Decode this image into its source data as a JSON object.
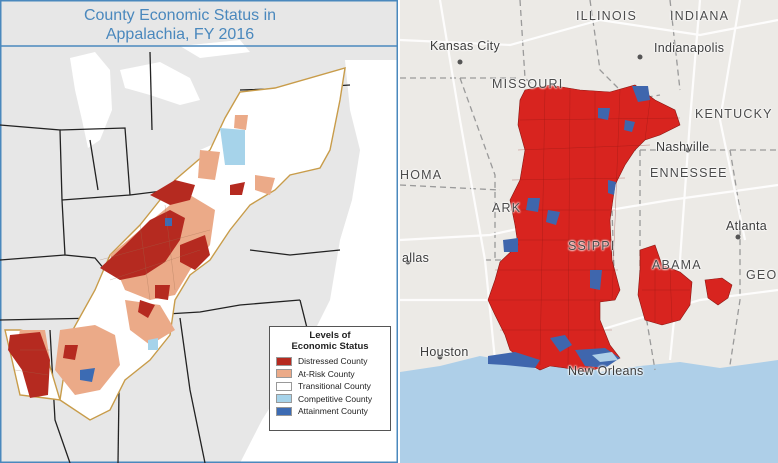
{
  "left_map": {
    "title_line1": "County Economic Status in",
    "title_line2": "Appalachia, FY 2016",
    "legend": {
      "title_line1": "Levels of",
      "title_line2": "Economic Status",
      "items": [
        {
          "label": "Distressed County",
          "color": "#b52a20"
        },
        {
          "label": "At-Risk County",
          "color": "#ebaa88"
        },
        {
          "label": "Transitional County",
          "color": "#ffffff"
        },
        {
          "label": "Competitive County",
          "color": "#a6d3ea"
        },
        {
          "label": "Attainment County",
          "color": "#3c6bb3"
        }
      ]
    }
  },
  "right_map": {
    "states": [
      "ILLINOIS",
      "INDIANA",
      "MISSOURI",
      "KENTUCKY",
      "TENNESSEE",
      "ARKANSAS",
      "MISSISSIPPI",
      "ALABAMA",
      "GEORGIA",
      "OKLAHOMA"
    ],
    "states_visible": [
      "ILLINOIS",
      "INDIANA",
      "MISSOURI",
      "KENTUCKY",
      "ENNESSEE",
      "ARK",
      "SSIPPI",
      "ABAMA",
      "GEO",
      "HOMA"
    ],
    "cities": [
      "Kansas City",
      "Indianapolis",
      "Nashville",
      "Atlanta",
      "Dallas",
      "Houston",
      "New Orleans"
    ],
    "cities_visible": [
      "Kansas City",
      "Indianapolis",
      "Nashville",
      "Atlanta",
      "allas",
      "Houston",
      "New Orleans"
    ],
    "colors": {
      "highlight": "#d8241f",
      "water": "#aecfe8",
      "county_blue": "#3f66ad",
      "land": "#eceae6"
    }
  }
}
